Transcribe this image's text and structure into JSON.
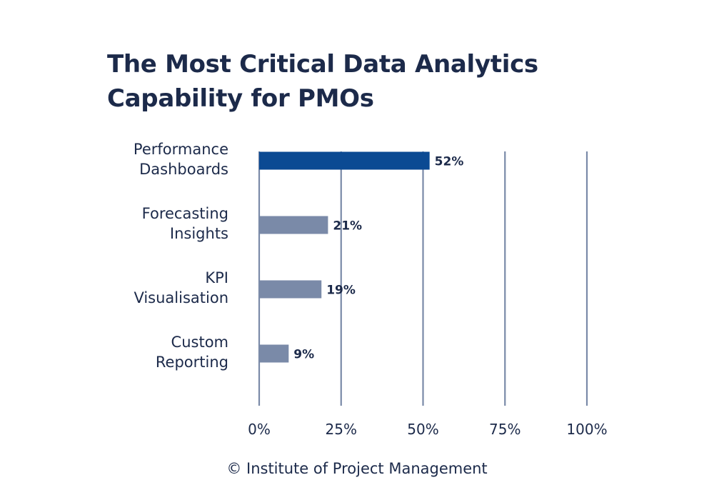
{
  "title_lines": [
    "The Most Critical Data Analytics",
    "Capability for PMOs"
  ],
  "footer": "© Institute of Project Management",
  "colors": {
    "highlight": "#0b4a93",
    "bar": "#7a8aa8",
    "gridline": "#7a8aa8",
    "text": "#1c2a4a"
  },
  "chart_data": {
    "type": "bar",
    "orientation": "horizontal",
    "title": "The Most Critical Data Analytics Capability for PMOs",
    "categories": [
      [
        "Performance",
        "Dashboards"
      ],
      [
        "Forecasting",
        "Insights"
      ],
      [
        "KPI",
        "Visualisation"
      ],
      [
        "Custom",
        "Reporting"
      ]
    ],
    "values": [
      52,
      21,
      19,
      9
    ],
    "value_labels": [
      "52%",
      "21%",
      "19%",
      "9%"
    ],
    "highlight_index": 0,
    "xlim": [
      0,
      100
    ],
    "xticks": [
      0,
      25,
      50,
      75,
      100
    ],
    "xtick_labels": [
      "0%",
      "25%",
      "50%",
      "75%",
      "100%"
    ],
    "grid": true,
    "legend": "none"
  }
}
